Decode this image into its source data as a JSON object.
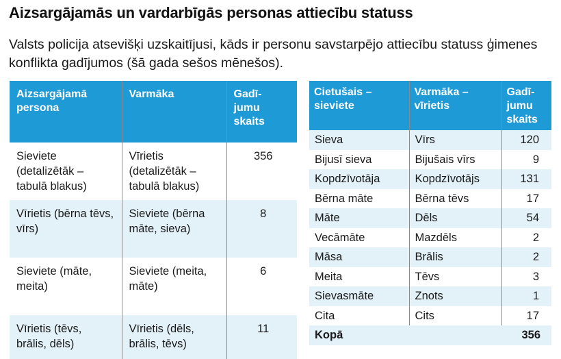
{
  "title": "Aizsargājamās un vardarbīgās personas attiecību statuss",
  "subtitle": "Valsts policija atsevišķi uzskaitījusi, kāds ir personu savstarpējo attiecību statuss ģimenes konflikta gadījumos (šā gada sešos mēnešos).",
  "left_table": {
    "headers": [
      "Aizsargājamā persona",
      "Varmāka",
      "Gadī-jumu skaits"
    ],
    "rows": [
      {
        "protected": "Sieviete (detalizētāk – tabulā blakus)",
        "abuser": "Vīrietis (detalizētāk – tabulā blakus)",
        "count": "356"
      },
      {
        "protected": "Vīrietis (bērna tēvs, vīrs)",
        "abuser": "Sieviete (bērna māte, sieva)",
        "count": "8"
      },
      {
        "protected": "Sieviete (māte, meita)",
        "abuser": "Sieviete (meita, māte)",
        "count": "6"
      },
      {
        "protected": "Vīrietis (tēvs, brālis, dēls)",
        "abuser": "Vīrietis (dēls, brālis, tēvs)",
        "count": "11"
      }
    ]
  },
  "right_table": {
    "headers": [
      "Cietušais – sieviete",
      "Varmāka – vīrietis",
      "Gadī-jumu skaits"
    ],
    "rows": [
      {
        "victim": "Sieva",
        "abuser": "Vīrs",
        "count": "120"
      },
      {
        "victim": "Bijusī sieva",
        "abuser": "Bijušais vīrs",
        "count": "9"
      },
      {
        "victim": "Kopdzīvotāja",
        "abuser": "Kopdzīvotājs",
        "count": "131"
      },
      {
        "victim": "Bērna māte",
        "abuser": "Bērna tēvs",
        "count": "17"
      },
      {
        "victim": "Māte",
        "abuser": "Dēls",
        "count": "54"
      },
      {
        "victim": "Vecāmāte",
        "abuser": "Mazdēls",
        "count": "2"
      },
      {
        "victim": "Māsa",
        "abuser": "Brālis",
        "count": "2"
      },
      {
        "victim": "Meita",
        "abuser": "Tēvs",
        "count": "3"
      },
      {
        "victim": "Sievasmāte",
        "abuser": "Znots",
        "count": "1"
      },
      {
        "victim": "Cita",
        "abuser": "Cits",
        "count": "17"
      }
    ],
    "total_label": "Kopā",
    "total_count": "356"
  },
  "colors": {
    "header_bg": "#1e9ad6",
    "row_alt_bg": "#e3f1f9",
    "header_text": "#ffffff"
  }
}
